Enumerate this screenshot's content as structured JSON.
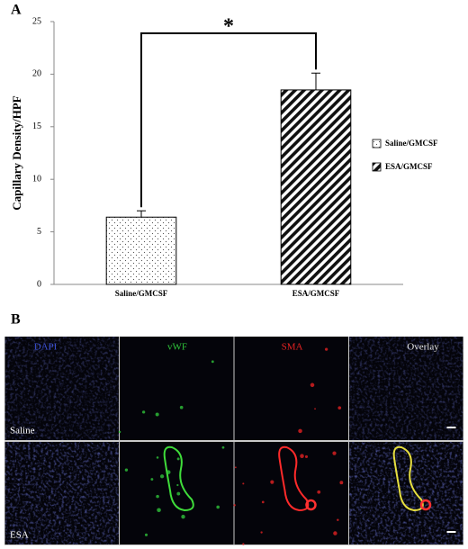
{
  "chart_data": {
    "type": "bar",
    "panel_label": "A",
    "y_label": "Capillary Density/HPF",
    "categories": [
      "Saline/GMCSF",
      "ESA/GMCSF"
    ],
    "series": [
      {
        "name": "Saline/GMCSF",
        "pattern": "dots",
        "color": "#000000",
        "values": [
          6.4,
          null
        ],
        "errors": [
          0.6,
          null
        ]
      },
      {
        "name": "ESA/GMCSF",
        "pattern": "stripes",
        "color": "#000000",
        "values": [
          null,
          18.5
        ],
        "errors": [
          null,
          1.6
        ]
      }
    ],
    "ylim": [
      0,
      25
    ],
    "yticks": [
      0,
      5,
      10,
      15,
      20,
      25
    ],
    "significance": "*",
    "legend": "right"
  },
  "panel_b": {
    "label": "B",
    "columns": [
      {
        "label": "DAPI",
        "color": "#3b4fd0"
      },
      {
        "label": "vWF",
        "color": "#2fc43a"
      },
      {
        "label": "SMA",
        "color": "#e32222"
      },
      {
        "label": "Overlay",
        "color": "#e8e8e8"
      }
    ],
    "rows": [
      "Saline",
      "ESA"
    ]
  }
}
